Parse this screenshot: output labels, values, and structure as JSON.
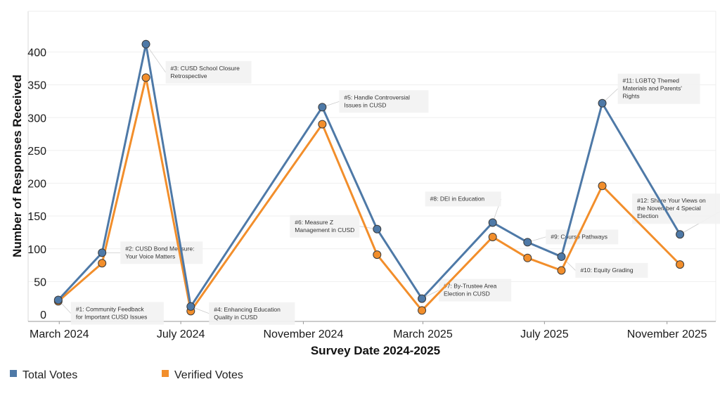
{
  "chart_data": {
    "type": "line",
    "xlabel": "Survey Date 2024-2025",
    "ylabel": "Number of Responses Received",
    "ylim": [
      0,
      430
    ],
    "yticks": [
      0,
      50,
      100,
      150,
      200,
      250,
      300,
      350,
      400
    ],
    "xlim": [
      "2024-02-15",
      "2025-12-15"
    ],
    "xticks": [
      {
        "date": "2024-03-01",
        "label": "March 2024"
      },
      {
        "date": "2024-07-01",
        "label": "July 2024"
      },
      {
        "date": "2024-11-01",
        "label": "November 2024"
      },
      {
        "date": "2025-03-01",
        "label": "March 2025"
      },
      {
        "date": "2025-07-01",
        "label": "July 2025"
      },
      {
        "date": "2025-11-01",
        "label": "November 2025"
      }
    ],
    "grid": "horizontal",
    "legend_position": "bottom-left",
    "series": [
      {
        "name": "Total Votes",
        "color": "#4e79a7",
        "points": [
          {
            "date": "2024-02-29",
            "value": 22
          },
          {
            "date": "2024-04-13",
            "value": 94
          },
          {
            "date": "2024-05-27",
            "value": 412
          },
          {
            "date": "2024-07-11",
            "value": 12
          },
          {
            "date": "2024-11-20",
            "value": 316
          },
          {
            "date": "2025-01-14",
            "value": 130
          },
          {
            "date": "2025-02-28",
            "value": 24
          },
          {
            "date": "2025-05-10",
            "value": 140
          },
          {
            "date": "2025-06-14",
            "value": 110
          },
          {
            "date": "2025-07-18",
            "value": 88
          },
          {
            "date": "2025-08-28",
            "value": 322
          },
          {
            "date": "2025-11-14",
            "value": 122
          }
        ]
      },
      {
        "name": "Verified Votes",
        "color": "#f28e2b",
        "points": [
          {
            "date": "2024-02-29",
            "value": 20
          },
          {
            "date": "2024-04-13",
            "value": 78
          },
          {
            "date": "2024-05-27",
            "value": 361
          },
          {
            "date": "2024-07-11",
            "value": 5
          },
          {
            "date": "2024-11-20",
            "value": 290
          },
          {
            "date": "2025-01-14",
            "value": 91
          },
          {
            "date": "2025-02-28",
            "value": 6
          },
          {
            "date": "2025-05-10",
            "value": 118
          },
          {
            "date": "2025-06-14",
            "value": 86
          },
          {
            "date": "2025-07-18",
            "value": 67
          },
          {
            "date": "2025-08-28",
            "value": 196
          },
          {
            "date": "2025-11-14",
            "value": 76
          }
        ]
      }
    ],
    "annotations": [
      {
        "point": 0,
        "lines": [
          "#1: Community Feedback",
          "for Important CUSD Issues"
        ]
      },
      {
        "point": 1,
        "lines": [
          "#2: CUSD Bond Measure:",
          "Your Voice Matters"
        ]
      },
      {
        "point": 2,
        "lines": [
          "#3: CUSD School Closure",
          "Retrospective"
        ]
      },
      {
        "point": 3,
        "lines": [
          "#4: Enhancing Education",
          "Quality in CUSD"
        ]
      },
      {
        "point": 4,
        "lines": [
          "#5: Handle Controversial",
          "Issues in CUSD"
        ]
      },
      {
        "point": 5,
        "lines": [
          "#6: Measure Z",
          "Management in CUSD"
        ]
      },
      {
        "point": 6,
        "lines": [
          "#7: By-Trustee Area",
          "Election in CUSD"
        ]
      },
      {
        "point": 7,
        "lines": [
          "#8: DEI in Education"
        ]
      },
      {
        "point": 8,
        "lines": [
          "#9: Course Pathways"
        ]
      },
      {
        "point": 9,
        "lines": [
          "#10: Equity Grading"
        ]
      },
      {
        "point": 10,
        "lines": [
          "#11: LGBTQ Themed",
          "Materials and Parents'",
          "Rights"
        ]
      },
      {
        "point": 11,
        "lines": [
          "#12:  Share Your Views on",
          "the November 4 Special",
          "Election"
        ]
      }
    ]
  }
}
